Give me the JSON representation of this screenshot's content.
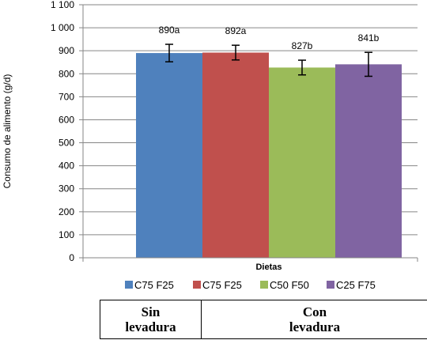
{
  "chart_data": {
    "type": "bar",
    "xlabel": "Dietas",
    "ylabel": "Consumo de alimento (g/d)",
    "ylim": [
      0,
      1100
    ],
    "yticks": [
      0,
      100,
      200,
      300,
      400,
      500,
      600,
      700,
      800,
      900,
      1000,
      1100
    ],
    "ytick_labels": [
      "0",
      "100",
      "200",
      "300",
      "400",
      "500",
      "600",
      "700",
      "800",
      "900",
      "1 000",
      "1 100"
    ],
    "grid": true,
    "legend_position": "bottom",
    "series": [
      {
        "name": "C75 F25",
        "value": 890,
        "error": 38,
        "label": "890a",
        "color": "#4f81bd"
      },
      {
        "name": "C75 F25",
        "value": 892,
        "error": 32,
        "label": "892a",
        "color": "#c0504d"
      },
      {
        "name": "C50 F50",
        "value": 827,
        "error": 32,
        "label": "827b",
        "color": "#9bbb59"
      },
      {
        "name": "C25 F75",
        "value": 841,
        "error": 52,
        "label": "841b",
        "color": "#8064a2"
      }
    ]
  },
  "groups": {
    "left": "Sin\nlevadura",
    "right": "Con\nlevadura"
  }
}
